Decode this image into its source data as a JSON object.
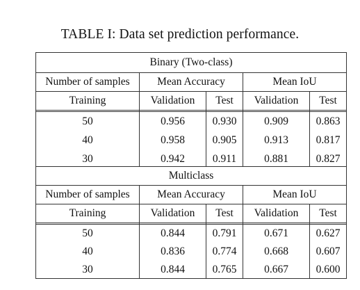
{
  "caption": "TABLE I: Data set prediction performance.",
  "sections": [
    {
      "title": "Binary (Two-class)",
      "header1": [
        "Number of samples",
        "Mean Accuracy",
        "Mean IoU"
      ],
      "header2": [
        "Training",
        "Validation",
        "Test",
        "Validation",
        "Test"
      ],
      "rows": [
        [
          "50",
          "0.956",
          "0.930",
          "0.909",
          "0.863"
        ],
        [
          "40",
          "0.958",
          "0.905",
          "0.913",
          "0.817"
        ],
        [
          "30",
          "0.942",
          "0.911",
          "0.881",
          "0.827"
        ]
      ]
    },
    {
      "title": "Multiclass",
      "header1": [
        "Number of samples",
        "Mean Accuracy",
        "Mean IoU"
      ],
      "header2": [
        "Training",
        "Validation",
        "Test",
        "Validation",
        "Test"
      ],
      "rows": [
        [
          "50",
          "0.844",
          "0.791",
          "0.671",
          "0.627"
        ],
        [
          "40",
          "0.836",
          "0.774",
          "0.668",
          "0.607"
        ],
        [
          "30",
          "0.844",
          "0.765",
          "0.667",
          "0.600"
        ]
      ]
    }
  ]
}
